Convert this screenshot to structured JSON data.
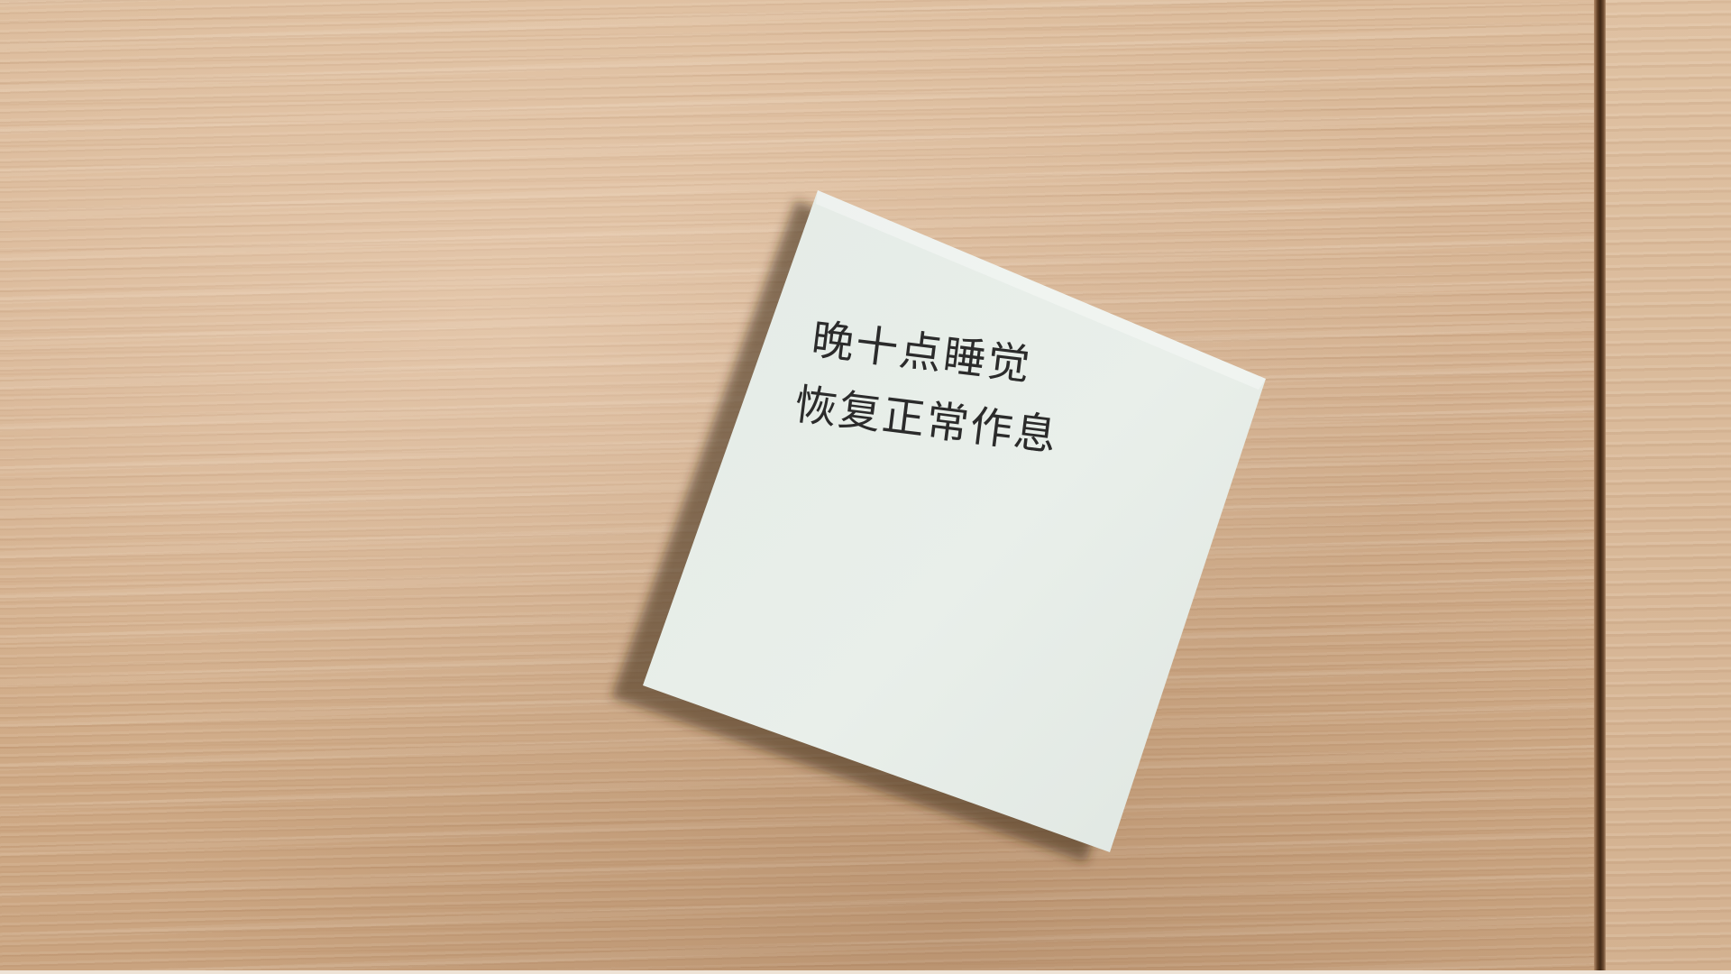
{
  "note": {
    "lines": [
      "晚十点睡觉",
      "恢复正常作息"
    ],
    "paper_color": "#e6ede7",
    "ink_color": "#2b2b2b"
  },
  "background": {
    "wood_color": "#d2b08f",
    "gap_color": "#3d2614"
  }
}
